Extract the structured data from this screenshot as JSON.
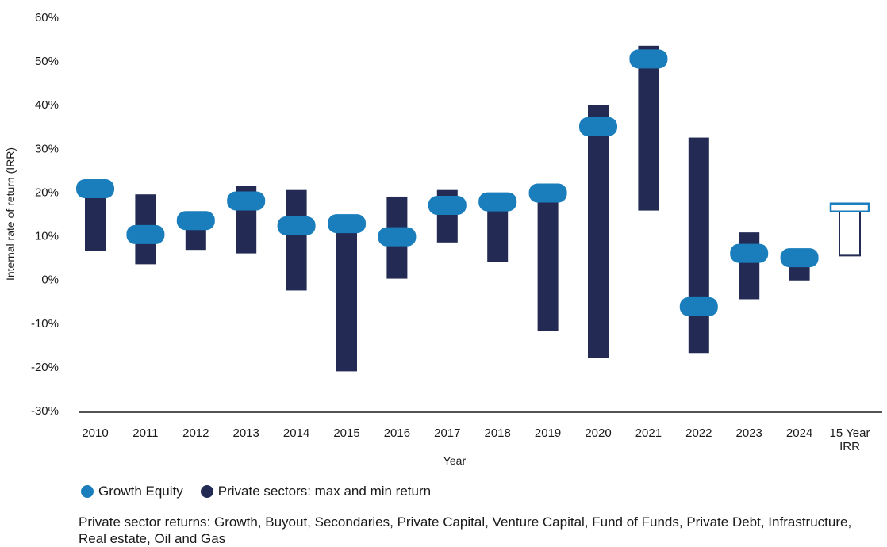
{
  "chart_data": {
    "type": "range-bar",
    "xlabel": "Year",
    "ylabel": "Internal rate of return (IRR)",
    "ylim": [
      -30,
      60
    ],
    "y_ticks": [
      "60%",
      "50%",
      "40%",
      "30%",
      "20%",
      "10%",
      "0%",
      "-10%",
      "-20%",
      "-30%"
    ],
    "y_tick_values": [
      60,
      50,
      40,
      30,
      20,
      10,
      0,
      -10,
      -20,
      -30
    ],
    "categories": [
      "2010",
      "2011",
      "2012",
      "2013",
      "2014",
      "2015",
      "2016",
      "2017",
      "2018",
      "2019",
      "2020",
      "2021",
      "2022",
      "2023",
      "2024",
      [
        "15 Year",
        "IRR"
      ]
    ],
    "series": [
      {
        "name": "Private sectors: max and min return",
        "min": [
          6.5,
          3.5,
          6.8,
          6,
          -2.5,
          -21,
          0.2,
          8.5,
          4,
          -11.8,
          -18,
          15.8,
          -16.8,
          -4.5,
          -0.2,
          5.5
        ],
        "max": [
          20,
          19.5,
          13,
          21.5,
          20.5,
          12,
          19,
          20.5,
          17,
          19.5,
          40,
          53.5,
          32.5,
          10.8,
          5.5,
          16
        ]
      },
      {
        "name": "Growth Equity",
        "values": [
          20.8,
          10.3,
          13.5,
          18,
          12.3,
          12.8,
          9.8,
          17,
          17.8,
          19.8,
          35,
          50.5,
          -6.2,
          6,
          5,
          16.5
        ]
      }
    ],
    "colors": {
      "growth_equity": "#1b7ebc",
      "private_sectors": "#232b55",
      "axis": "#1a1a1a"
    },
    "legend": {
      "position": "bottom-left",
      "items": [
        {
          "label": "Growth Equity",
          "color": "#1b7ebc"
        },
        {
          "label": "Private sectors: max and min return",
          "color": "#232b55"
        }
      ]
    },
    "note": "Private sector returns: Growth, Buyout, Secondaries, Private Capital, Venture Capital, Fund of Funds, Private Debt, Infrastructure, Real estate, Oil and Gas"
  }
}
